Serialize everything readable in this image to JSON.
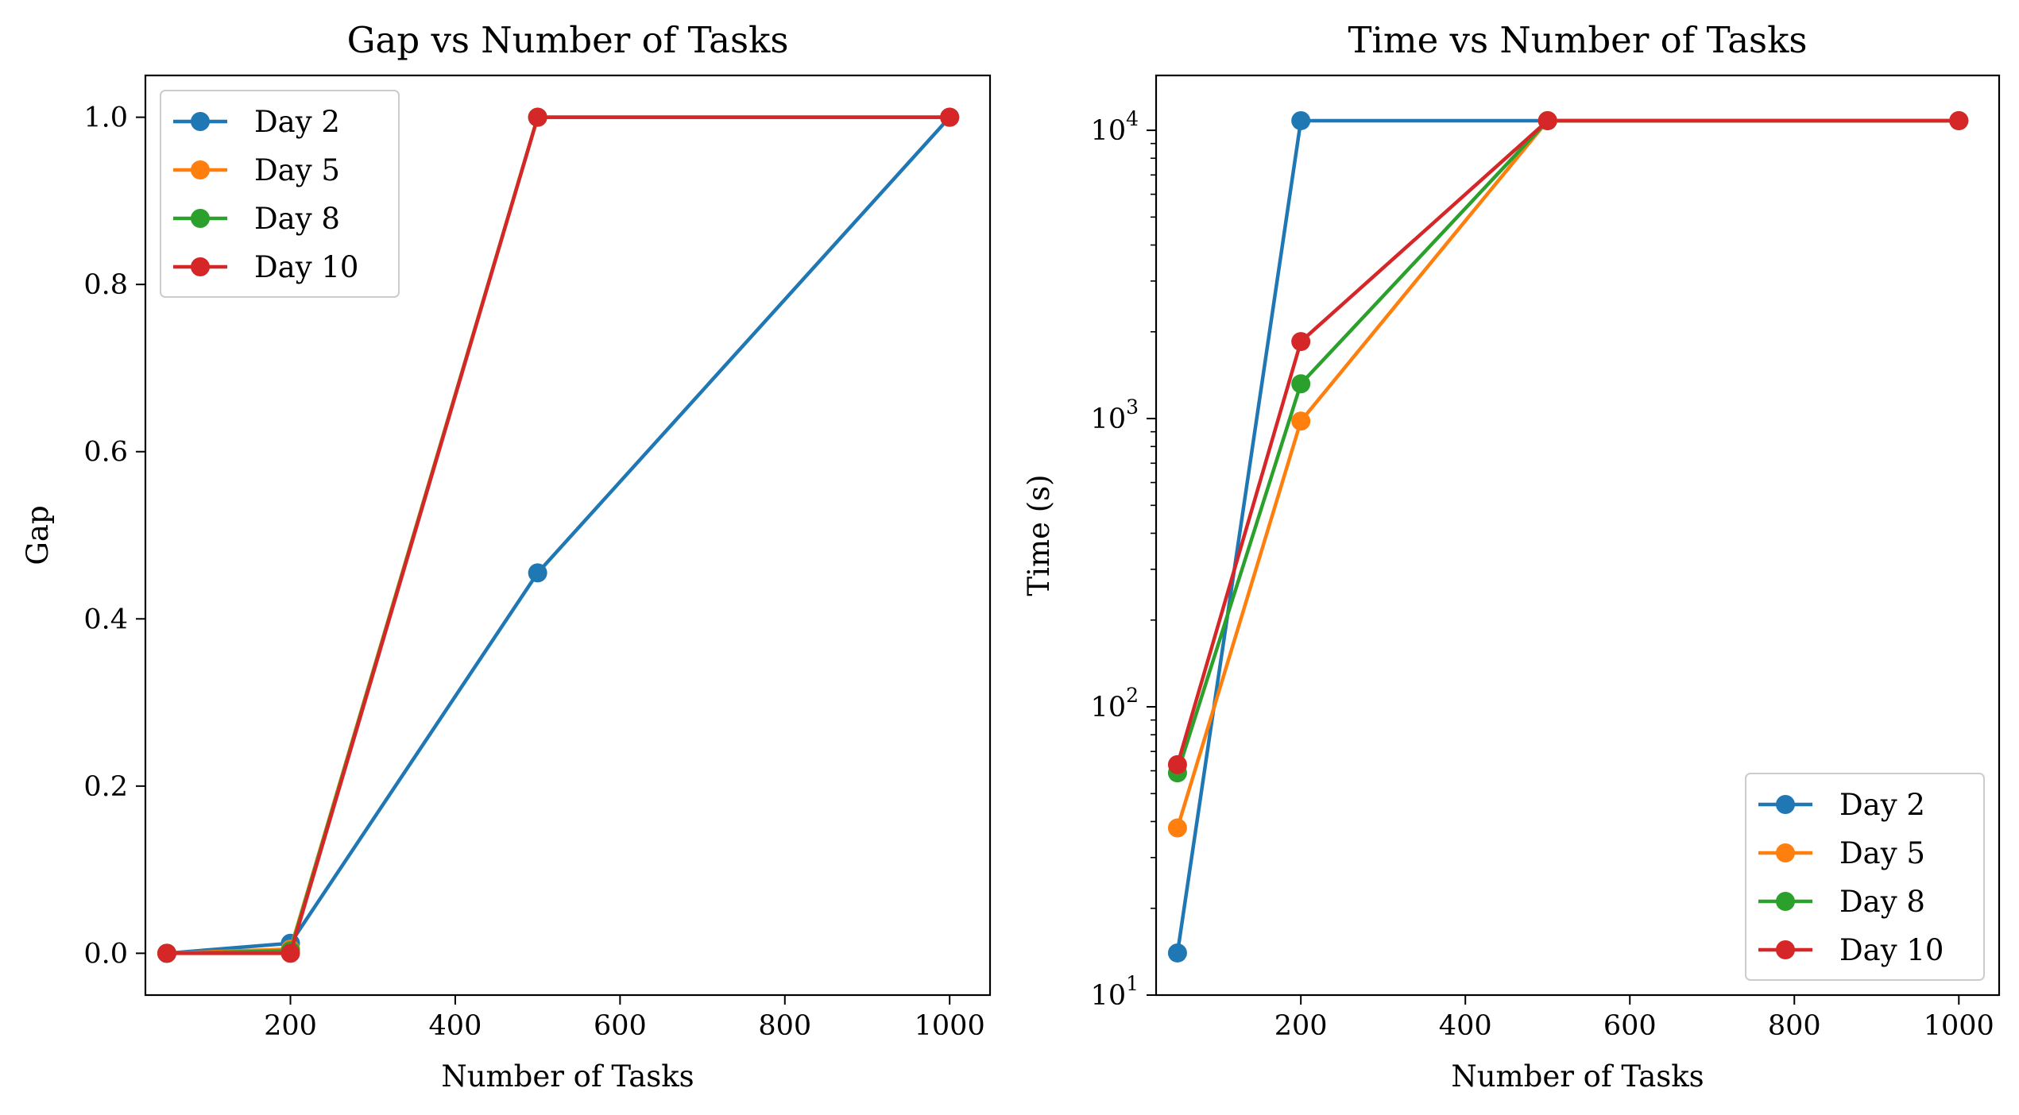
{
  "chart_data": [
    {
      "type": "line",
      "title": "Gap vs Number of Tasks",
      "xlabel": "Number of Tasks",
      "ylabel": "Gap",
      "xlim": [
        24,
        1049
      ],
      "ylim": [
        -0.05,
        1.05
      ],
      "y_scale": "linear",
      "xticks": [
        200,
        400,
        600,
        800,
        1000
      ],
      "xtick_labels": [
        "200",
        "400",
        "600",
        "800",
        "1000"
      ],
      "yticks": [
        0.0,
        0.2,
        0.4,
        0.6,
        0.8,
        1.0
      ],
      "ytick_labels": [
        "0.0",
        "0.2",
        "0.4",
        "0.6",
        "0.8",
        "1.0"
      ],
      "grid": false,
      "legend_position": "upper-left",
      "x": [
        50,
        200,
        500,
        1000
      ],
      "series": [
        {
          "name": "Day 2",
          "color": "#1f77b4",
          "values": [
            0.0,
            0.012,
            0.455,
            1.0
          ]
        },
        {
          "name": "Day 5",
          "color": "#ff7f0e",
          "values": [
            0.0,
            0.005,
            1.0,
            1.0
          ]
        },
        {
          "name": "Day 8",
          "color": "#2ca02c",
          "values": [
            0.0,
            0.003,
            1.0,
            1.0
          ]
        },
        {
          "name": "Day 10",
          "color": "#d62728",
          "values": [
            0.0,
            0.0,
            1.0,
            1.0
          ]
        }
      ]
    },
    {
      "type": "line",
      "title": "Time vs Number of Tasks",
      "xlabel": "Number of Tasks",
      "ylabel": "Time (s)",
      "xlim": [
        24,
        1049
      ],
      "ylim": [
        10,
        15500
      ],
      "y_scale": "log",
      "xticks": [
        200,
        400,
        600,
        800,
        1000
      ],
      "xtick_labels": [
        "200",
        "400",
        "600",
        "800",
        "1000"
      ],
      "yticks": [
        10,
        100,
        1000,
        10000
      ],
      "ytick_base": "10",
      "ytick_exponents": [
        "1",
        "2",
        "3",
        "4"
      ],
      "grid": false,
      "legend_position": "lower-right",
      "x": [
        50,
        200,
        500,
        1000
      ],
      "series": [
        {
          "name": "Day 2",
          "color": "#1f77b4",
          "values": [
            14,
            10800,
            10800,
            10800
          ]
        },
        {
          "name": "Day 5",
          "color": "#ff7f0e",
          "values": [
            38,
            980,
            10800,
            10800
          ]
        },
        {
          "name": "Day 8",
          "color": "#2ca02c",
          "values": [
            59,
            1320,
            10800,
            10800
          ]
        },
        {
          "name": "Day 10",
          "color": "#d62728",
          "values": [
            63,
            1850,
            10800,
            10800
          ]
        }
      ]
    }
  ]
}
